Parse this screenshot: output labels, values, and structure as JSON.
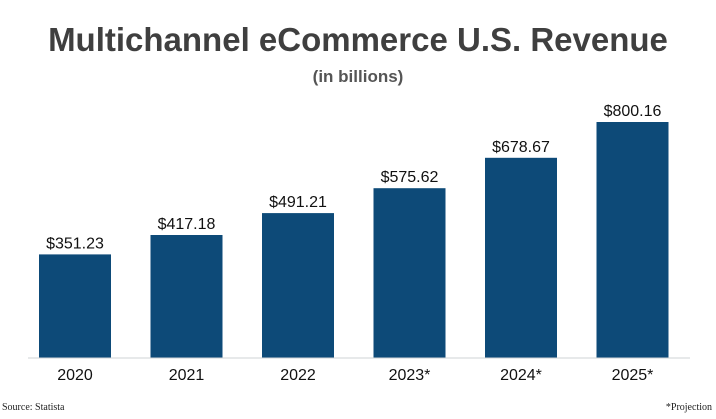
{
  "chart_data": {
    "type": "bar",
    "title": "Multichannel eCommerce U.S. Revenue",
    "subtitle": "(in billions)",
    "xlabel": "",
    "ylabel": "",
    "categories": [
      "2020",
      "2021",
      "2022",
      "2023*",
      "2024*",
      "2025*"
    ],
    "values": [
      351.23,
      417.18,
      491.21,
      575.62,
      678.67,
      800.16
    ],
    "value_labels": [
      "$351.23",
      "$417.18",
      "$491.21",
      "$575.62",
      "$678.67",
      "$800.16"
    ],
    "ylim": [
      0,
      800.16
    ],
    "grid": false,
    "legend": "none",
    "bar_color": "#0d4a78",
    "baseline_color": "#cfd3d6"
  },
  "footer": {
    "source": "Source: Statista",
    "note": "*Projection"
  }
}
